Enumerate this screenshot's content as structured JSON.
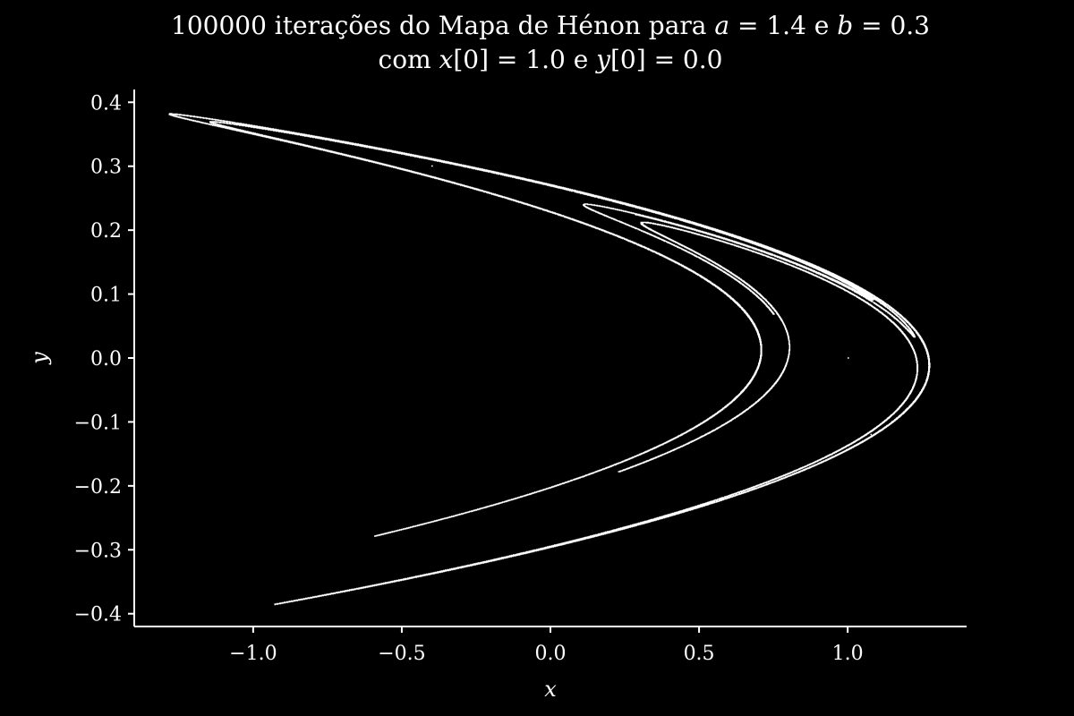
{
  "chart_data": {
    "type": "scatter",
    "title_line1": {
      "prefix": "100000 iterações do Mapa de Hénon para ",
      "a_sym": "a",
      "a_val": " = 1.4 e ",
      "b_sym": "b",
      "b_val": " = 0.3"
    },
    "title_line2": {
      "prefix": "com ",
      "x_sym": "x",
      "x_init": "[0] = 1.0 e ",
      "y_sym": "y",
      "y_init": "[0] = 0.0"
    },
    "xlabel": "x",
    "ylabel": "y",
    "xlim": [
      -1.4,
      1.4
    ],
    "ylim": [
      -0.42,
      0.42
    ],
    "xticks": [
      -1.0,
      -0.5,
      0.0,
      0.5,
      1.0
    ],
    "xtick_labels": [
      "−1.0",
      "−0.5",
      "0.0",
      "0.5",
      "1.0"
    ],
    "yticks": [
      0.4,
      0.3,
      0.2,
      0.1,
      0.0,
      -0.1,
      -0.2,
      -0.3,
      -0.4
    ],
    "ytick_labels": [
      "0.4",
      "0.3",
      "0.2",
      "0.1",
      "0.0",
      "−0.1",
      "−0.2",
      "−0.3",
      "−0.4"
    ],
    "grid": false,
    "background": "#000000",
    "point_color": "#ffffff",
    "map": {
      "a": 1.4,
      "b": 0.3,
      "x0": 1.0,
      "y0": 0.0,
      "iterations": 100000
    },
    "x_range": [
      -1.28,
      1.27
    ],
    "y_range": [
      -0.384,
      0.382
    ]
  }
}
